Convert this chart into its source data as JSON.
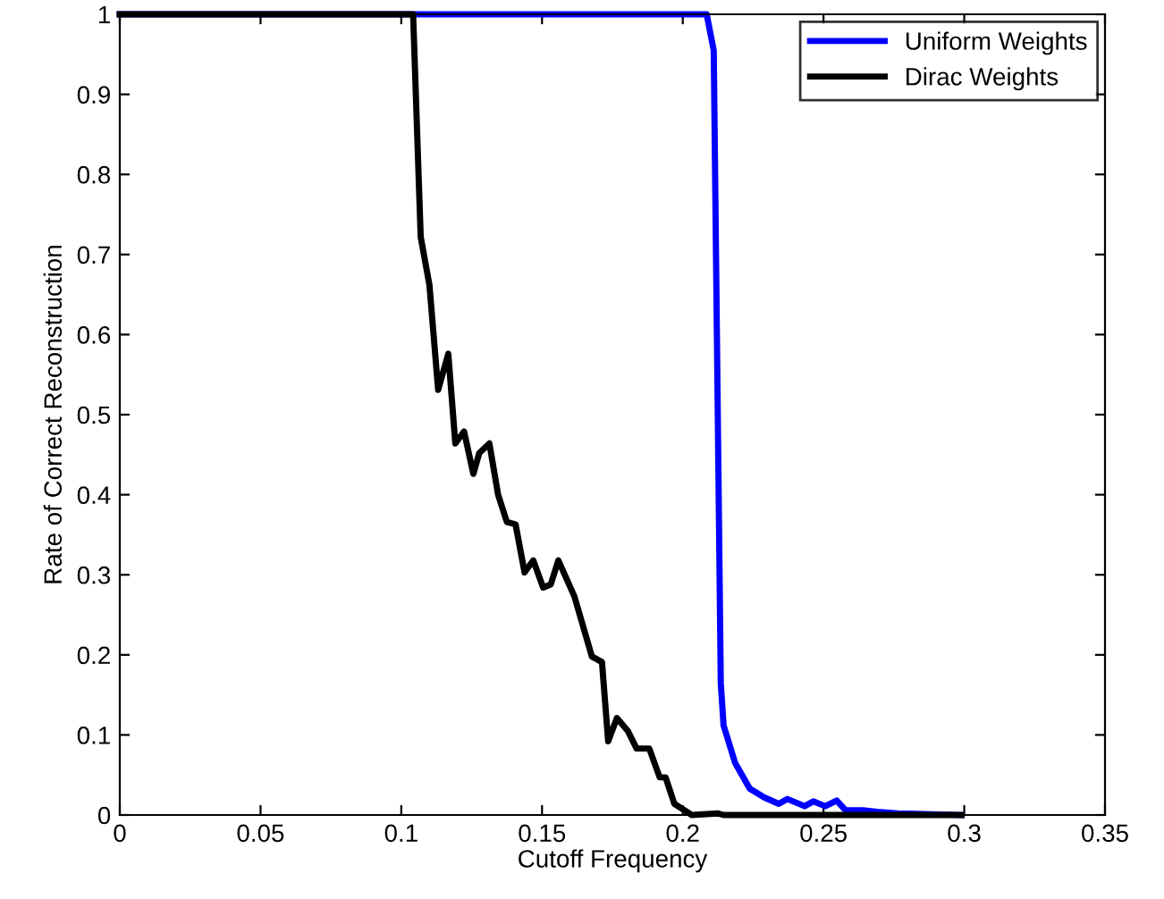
{
  "chart_data": {
    "type": "line",
    "xlabel": "Cutoff Frequency",
    "ylabel": "Rate of Correct Reconstruction",
    "xlim": [
      0,
      0.35
    ],
    "ylim": [
      0,
      1
    ],
    "xticks": [
      0,
      0.05,
      0.1,
      0.15,
      0.2,
      0.25,
      0.3,
      0.35
    ],
    "yticks": [
      0,
      0.1,
      0.2,
      0.3,
      0.4,
      0.5,
      0.6,
      0.7,
      0.8,
      0.9,
      1
    ],
    "grid": false,
    "legend": "top right",
    "marker": "none",
    "line_style": "solid",
    "series": [
      {
        "name": "Uniform Weights",
        "color": "#0000ff",
        "x": [
          0,
          0.2085,
          0.211,
          0.2135,
          0.2145,
          0.2186,
          0.2238,
          0.2289,
          0.2341,
          0.2372,
          0.2433,
          0.2464,
          0.2506,
          0.2547,
          0.2578,
          0.264,
          0.2691,
          0.2763,
          0.2887,
          0.299
        ],
        "values": [
          1,
          1,
          0.955,
          0.165,
          0.112,
          0.065,
          0.033,
          0.022,
          0.014,
          0.02,
          0.011,
          0.017,
          0.011,
          0.018,
          0.006,
          0.006,
          0.004,
          0.002,
          0.001,
          0
        ]
      },
      {
        "name": "Dirac Weights",
        "color": "#000000",
        "x": [
          0,
          0.1042,
          0.1069,
          0.11,
          0.1131,
          0.1167,
          0.1192,
          0.1223,
          0.1256,
          0.1277,
          0.1313,
          0.1344,
          0.1375,
          0.1406,
          0.1438,
          0.1469,
          0.1504,
          0.1531,
          0.1558,
          0.1615,
          0.1677,
          0.1713,
          0.1735,
          0.1766,
          0.1805,
          0.1836,
          0.1881,
          0.1918,
          0.1939,
          0.197,
          0.2032,
          0.2124,
          0.2145,
          0.299
        ],
        "values": [
          1,
          1,
          0.722,
          0.662,
          0.531,
          0.576,
          0.464,
          0.479,
          0.426,
          0.452,
          0.464,
          0.4,
          0.366,
          0.363,
          0.303,
          0.318,
          0.284,
          0.288,
          0.318,
          0.273,
          0.198,
          0.191,
          0.092,
          0.121,
          0.105,
          0.083,
          0.083,
          0.047,
          0.047,
          0.014,
          0,
          0.002,
          0,
          0
        ]
      }
    ]
  }
}
